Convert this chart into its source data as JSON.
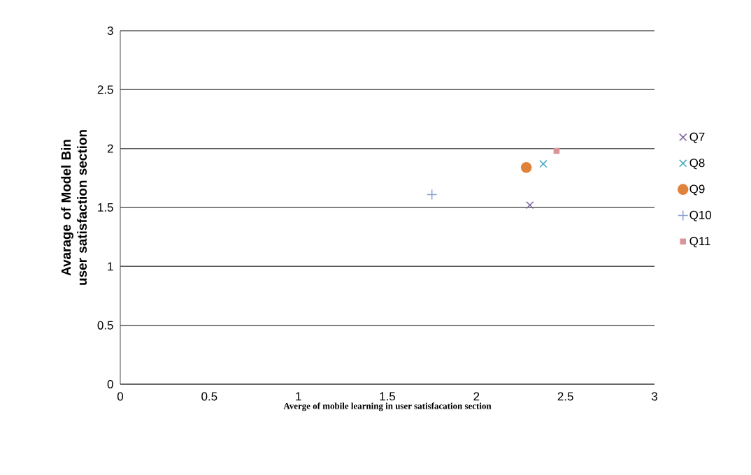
{
  "chart_data": {
    "type": "scatter",
    "xlabel": "Averge of mobile learning in user satisfacation section",
    "ylabel": "Avarage of Model Bin user satisfaction section",
    "xlim": [
      0,
      3
    ],
    "ylim": [
      0,
      3
    ],
    "xticks": [
      0,
      0.5,
      1,
      1.5,
      2,
      2.5,
      3
    ],
    "yticks": [
      0,
      0.5,
      1,
      1.5,
      2,
      2.5,
      3
    ],
    "grid": "y",
    "legend": "right",
    "series": [
      {
        "name": "Q7",
        "color": "#7e649e",
        "marker": "cross",
        "x": [
          2.3
        ],
        "values": [
          1.52
        ]
      },
      {
        "name": "Q8",
        "color": "#4bacc6",
        "marker": "cross",
        "x": [
          2.375
        ],
        "values": [
          1.87
        ]
      },
      {
        "name": "Q9",
        "color": "#e0833a",
        "marker": "circle",
        "x": [
          2.28
        ],
        "values": [
          1.84
        ]
      },
      {
        "name": "Q10",
        "color": "#8ea5d2",
        "marker": "plus",
        "x": [
          1.75
        ],
        "values": [
          1.61
        ]
      },
      {
        "name": "Q11",
        "color": "#d9969a",
        "marker": "square",
        "x": [
          2.45
        ],
        "values": [
          1.98
        ]
      }
    ]
  }
}
